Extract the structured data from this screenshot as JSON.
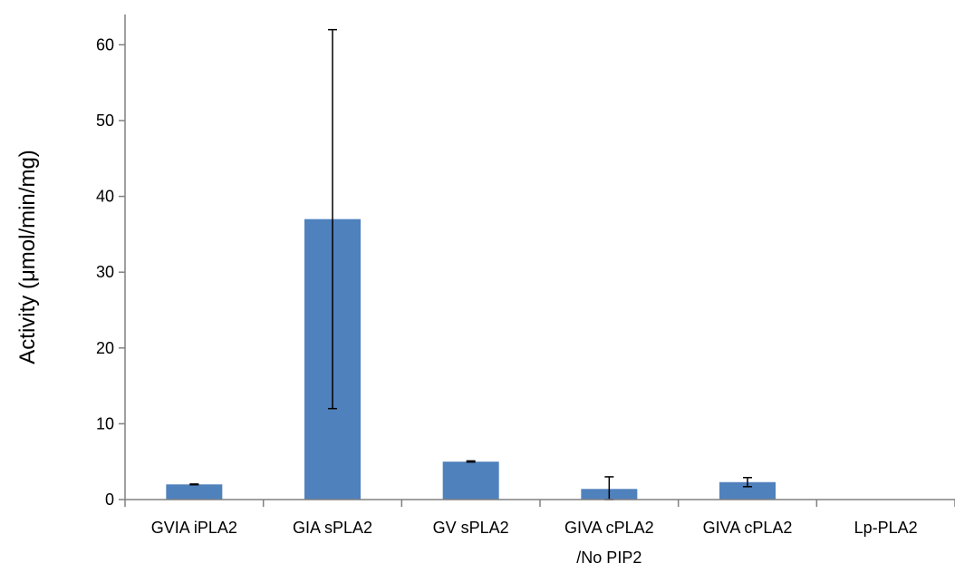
{
  "chart_data": {
    "type": "bar",
    "title": "",
    "xlabel": "",
    "ylabel": "Activity (μmol/min/mg)",
    "ylim": [
      0,
      64
    ],
    "yticks": [
      0,
      10,
      20,
      30,
      40,
      50,
      60
    ],
    "grid": false,
    "legend": "none",
    "bar_color": "#4F81BD",
    "categories": [
      [
        "GVIA iPLA2"
      ],
      [
        "GIA sPLA2"
      ],
      [
        "GV sPLA2"
      ],
      [
        "GIVA cPLA2",
        "/No PIP2"
      ],
      [
        "GIVA cPLA2"
      ],
      [
        "Lp-PLA2"
      ]
    ],
    "values": [
      2.0,
      37.0,
      5.0,
      1.4,
      2.3,
      0.05
    ],
    "error_low": [
      1.95,
      12.0,
      4.95,
      0.0,
      1.7,
      null
    ],
    "error_high": [
      2.05,
      62.0,
      5.1,
      3.0,
      2.9,
      null
    ]
  }
}
